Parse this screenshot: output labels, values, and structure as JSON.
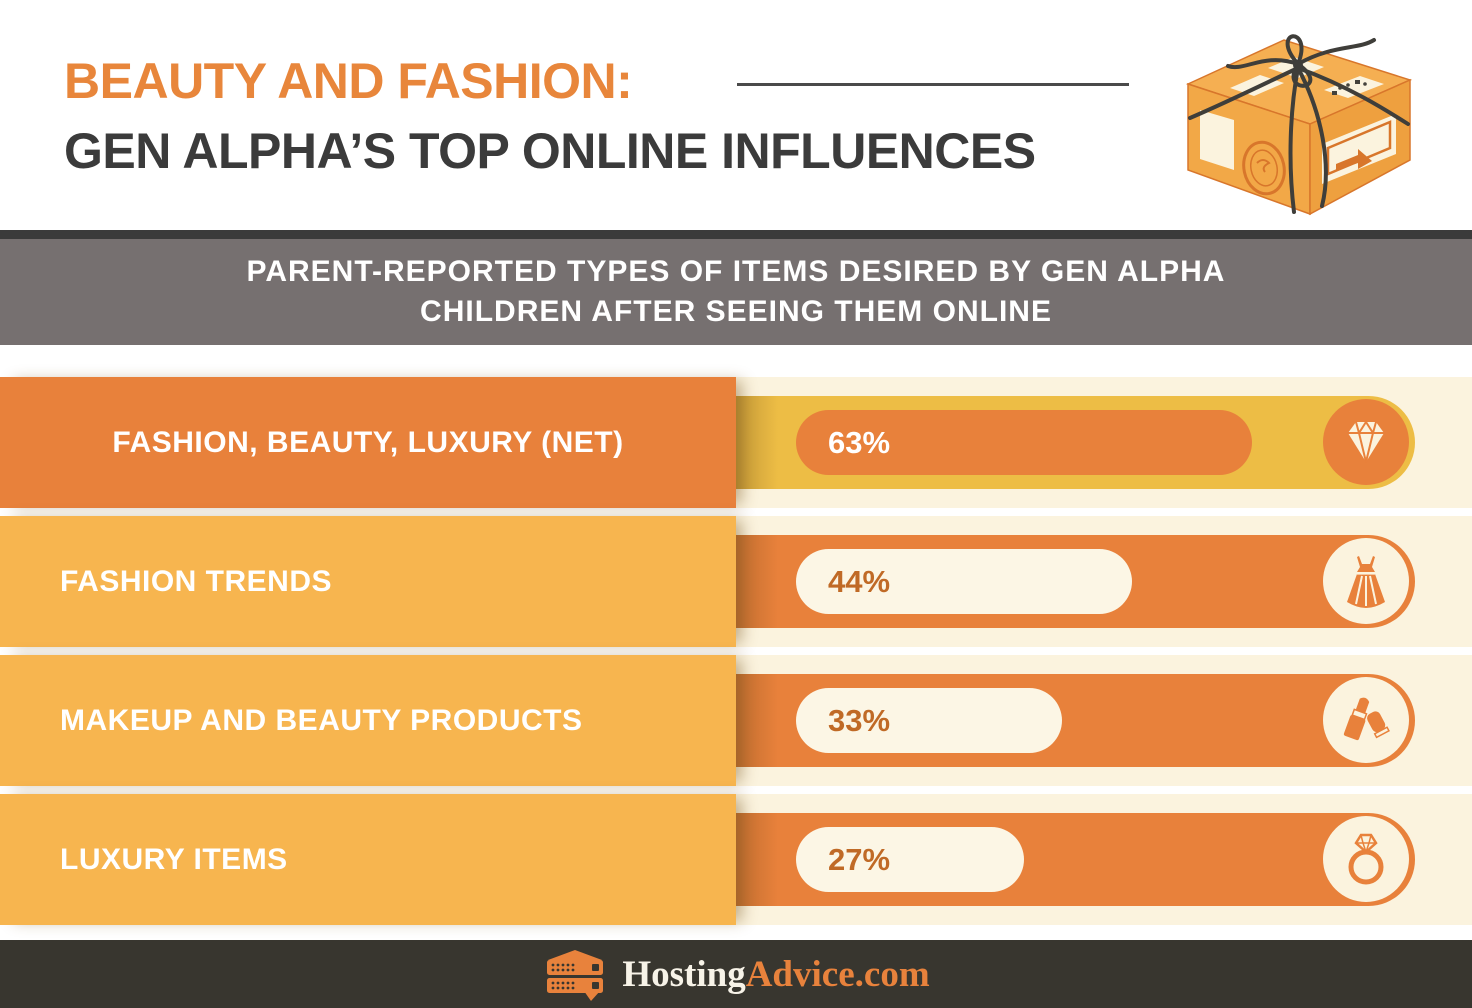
{
  "header": {
    "title_line1": "BEAUTY AND FASHION:",
    "title_line2": "GEN ALPHA’S TOP ONLINE INFLUENCES",
    "accent_color": "#E8863B",
    "title_color": "#3B3B3B",
    "illustration": "gift-wrapped-parcel-box"
  },
  "banner": {
    "line1": "PARENT-REPORTED TYPES OF ITEMS DESIRED BY GEN ALPHA",
    "line2": "CHILDREN AFTER SEEING THEM ONLINE",
    "bg": "#767070",
    "top_strip": "#3B3B3B",
    "text_color": "#FFFFFF"
  },
  "chart_data": {
    "type": "bar",
    "orientation": "horizontal",
    "title": "Parent-reported types of items desired by Gen Alpha children after seeing them online",
    "categories": [
      "FASHION, BEAUTY, LUXURY (NET)",
      "FASHION TRENDS",
      "MAKEUP AND BEAUTY PRODUCTS",
      "LUXURY ITEMS"
    ],
    "values": [
      63,
      44,
      33,
      27
    ],
    "unit": "%",
    "value_labels": [
      "63%",
      "44%",
      "33%",
      "27%"
    ],
    "icons": [
      "diamond",
      "dress",
      "lipstick",
      "ring"
    ],
    "xlim": [
      0,
      100
    ],
    "grid": false,
    "legend": false,
    "colors": {
      "orange": "#E8813B",
      "amber": "#F7B54F",
      "gold_track": "#EDBD45",
      "cream": "#FBF3DE",
      "cream_fill": "#FCF6E5",
      "value_text_dark": "#C06A26"
    }
  },
  "rows": [
    {
      "label": "FASHION, BEAUTY, LUXURY (NET)",
      "value_label": "63%",
      "icon": "diamond-icon",
      "highlight": true
    },
    {
      "label": "FASHION TRENDS",
      "value_label": "44%",
      "icon": "dress-icon",
      "highlight": false
    },
    {
      "label": "MAKEUP AND BEAUTY PRODUCTS",
      "value_label": "33%",
      "icon": "lipstick-icon",
      "highlight": false
    },
    {
      "label": "LUXURY ITEMS",
      "value_label": "27%",
      "icon": "ring-icon",
      "highlight": false
    }
  ],
  "footer": {
    "brand_part1": "Hosting",
    "brand_part2": "Advice",
    "brand_part3": ".com",
    "bg": "#38362F"
  }
}
